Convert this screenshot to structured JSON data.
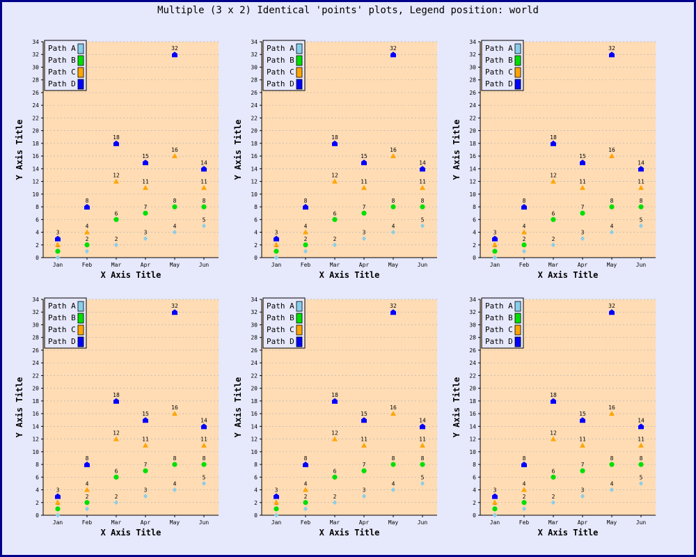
{
  "title": "Multiple (3 x 2) Identical 'points' plots, Legend position: world",
  "colors": {
    "background": "#e6e8fb",
    "border": "#00008b",
    "plot_area": "#ffdcb4",
    "grid": "#b4b4b4"
  },
  "chart_data": [
    {
      "type": "scatter",
      "categories": [
        "Jan",
        "Feb",
        "Mar",
        "Apr",
        "May",
        "Jun"
      ],
      "xlabel": "X Axis Title",
      "ylabel": "Y Axis Title",
      "ylim": [
        0,
        34
      ],
      "y_ticks": [
        "0",
        "2",
        "4",
        "6",
        "8",
        "10",
        "12",
        "14",
        "16",
        "18",
        "20",
        "22",
        "24",
        "26",
        "28",
        "30",
        "32",
        "34"
      ],
      "grid": true,
      "legend_position": "top-left",
      "series": [
        {
          "name": "Path A",
          "color": "#87ceeb",
          "marker": "diamond",
          "values": [
            0,
            1,
            2,
            3,
            4,
            5
          ]
        },
        {
          "name": "Path B",
          "color": "#00e000",
          "marker": "circle",
          "values": [
            1,
            2,
            6,
            7,
            8,
            8
          ]
        },
        {
          "name": "Path C",
          "color": "#ffa500",
          "marker": "triangle",
          "values": [
            2,
            4,
            12,
            11,
            16,
            11
          ]
        },
        {
          "name": "Path D",
          "color": "#0000ff",
          "marker": "pentagon",
          "values": [
            3,
            8,
            18,
            15,
            32,
            14
          ]
        }
      ]
    },
    {
      "type": "scatter",
      "categories": [
        "Jan",
        "Feb",
        "Mar",
        "Apr",
        "May",
        "Jun"
      ],
      "xlabel": "X Axis Title",
      "ylabel": "Y Axis Title",
      "ylim": [
        0,
        34
      ],
      "y_ticks": [
        "0",
        "2",
        "4",
        "6",
        "8",
        "10",
        "12",
        "14",
        "16",
        "18",
        "20",
        "22",
        "24",
        "26",
        "28",
        "30",
        "32",
        "34"
      ],
      "grid": true,
      "legend_position": "top-left",
      "series": [
        {
          "name": "Path A",
          "color": "#87ceeb",
          "marker": "diamond",
          "values": [
            0,
            1,
            2,
            3,
            4,
            5
          ]
        },
        {
          "name": "Path B",
          "color": "#00e000",
          "marker": "circle",
          "values": [
            1,
            2,
            6,
            7,
            8,
            8
          ]
        },
        {
          "name": "Path C",
          "color": "#ffa500",
          "marker": "triangle",
          "values": [
            2,
            4,
            12,
            11,
            16,
            11
          ]
        },
        {
          "name": "Path D",
          "color": "#0000ff",
          "marker": "pentagon",
          "values": [
            3,
            8,
            18,
            15,
            32,
            14
          ]
        }
      ]
    },
    {
      "type": "scatter",
      "categories": [
        "Jan",
        "Feb",
        "Mar",
        "Apr",
        "May",
        "Jun"
      ],
      "xlabel": "X Axis Title",
      "ylabel": "Y Axis Title",
      "ylim": [
        0,
        34
      ],
      "y_ticks": [
        "0",
        "2",
        "4",
        "6",
        "8",
        "10",
        "12",
        "14",
        "16",
        "18",
        "20",
        "22",
        "24",
        "26",
        "28",
        "30",
        "32",
        "34"
      ],
      "grid": true,
      "legend_position": "top-left",
      "series": [
        {
          "name": "Path A",
          "color": "#87ceeb",
          "marker": "diamond",
          "values": [
            0,
            1,
            2,
            3,
            4,
            5
          ]
        },
        {
          "name": "Path B",
          "color": "#00e000",
          "marker": "circle",
          "values": [
            1,
            2,
            6,
            7,
            8,
            8
          ]
        },
        {
          "name": "Path C",
          "color": "#ffa500",
          "marker": "triangle",
          "values": [
            2,
            4,
            12,
            11,
            16,
            11
          ]
        },
        {
          "name": "Path D",
          "color": "#0000ff",
          "marker": "pentagon",
          "values": [
            3,
            8,
            18,
            15,
            32,
            14
          ]
        }
      ]
    },
    {
      "type": "scatter",
      "categories": [
        "Jan",
        "Feb",
        "Mar",
        "Apr",
        "May",
        "Jun"
      ],
      "xlabel": "X Axis Title",
      "ylabel": "Y Axis Title",
      "ylim": [
        0,
        34
      ],
      "y_ticks": [
        "0",
        "2",
        "4",
        "6",
        "8",
        "10",
        "12",
        "14",
        "16",
        "18",
        "20",
        "22",
        "24",
        "26",
        "28",
        "30",
        "32",
        "34"
      ],
      "grid": true,
      "legend_position": "top-left",
      "series": [
        {
          "name": "Path A",
          "color": "#87ceeb",
          "marker": "diamond",
          "values": [
            0,
            1,
            2,
            3,
            4,
            5
          ]
        },
        {
          "name": "Path B",
          "color": "#00e000",
          "marker": "circle",
          "values": [
            1,
            2,
            6,
            7,
            8,
            8
          ]
        },
        {
          "name": "Path C",
          "color": "#ffa500",
          "marker": "triangle",
          "values": [
            2,
            4,
            12,
            11,
            16,
            11
          ]
        },
        {
          "name": "Path D",
          "color": "#0000ff",
          "marker": "pentagon",
          "values": [
            3,
            8,
            18,
            15,
            32,
            14
          ]
        }
      ]
    },
    {
      "type": "scatter",
      "categories": [
        "Jan",
        "Feb",
        "Mar",
        "Apr",
        "May",
        "Jun"
      ],
      "xlabel": "X Axis Title",
      "ylabel": "Y Axis Title",
      "ylim": [
        0,
        34
      ],
      "y_ticks": [
        "0",
        "2",
        "4",
        "6",
        "8",
        "10",
        "12",
        "14",
        "16",
        "18",
        "20",
        "22",
        "24",
        "26",
        "28",
        "30",
        "32",
        "34"
      ],
      "grid": true,
      "legend_position": "top-left",
      "series": [
        {
          "name": "Path A",
          "color": "#87ceeb",
          "marker": "diamond",
          "values": [
            0,
            1,
            2,
            3,
            4,
            5
          ]
        },
        {
          "name": "Path B",
          "color": "#00e000",
          "marker": "circle",
          "values": [
            1,
            2,
            6,
            7,
            8,
            8
          ]
        },
        {
          "name": "Path C",
          "color": "#ffa500",
          "marker": "triangle",
          "values": [
            2,
            4,
            12,
            11,
            16,
            11
          ]
        },
        {
          "name": "Path D",
          "color": "#0000ff",
          "marker": "pentagon",
          "values": [
            3,
            8,
            18,
            15,
            32,
            14
          ]
        }
      ]
    },
    {
      "type": "scatter",
      "categories": [
        "Jan",
        "Feb",
        "Mar",
        "Apr",
        "May",
        "Jun"
      ],
      "xlabel": "X Axis Title",
      "ylabel": "Y Axis Title",
      "ylim": [
        0,
        34
      ],
      "y_ticks": [
        "0",
        "2",
        "4",
        "6",
        "8",
        "10",
        "12",
        "14",
        "16",
        "18",
        "20",
        "22",
        "24",
        "26",
        "28",
        "30",
        "32",
        "34"
      ],
      "grid": true,
      "legend_position": "top-left",
      "series": [
        {
          "name": "Path A",
          "color": "#87ceeb",
          "marker": "diamond",
          "values": [
            0,
            1,
            2,
            3,
            4,
            5
          ]
        },
        {
          "name": "Path B",
          "color": "#00e000",
          "marker": "circle",
          "values": [
            1,
            2,
            6,
            7,
            8,
            8
          ]
        },
        {
          "name": "Path C",
          "color": "#ffa500",
          "marker": "triangle",
          "values": [
            2,
            4,
            12,
            11,
            16,
            11
          ]
        },
        {
          "name": "Path D",
          "color": "#0000ff",
          "marker": "pentagon",
          "values": [
            3,
            8,
            18,
            15,
            32,
            14
          ]
        }
      ]
    }
  ]
}
